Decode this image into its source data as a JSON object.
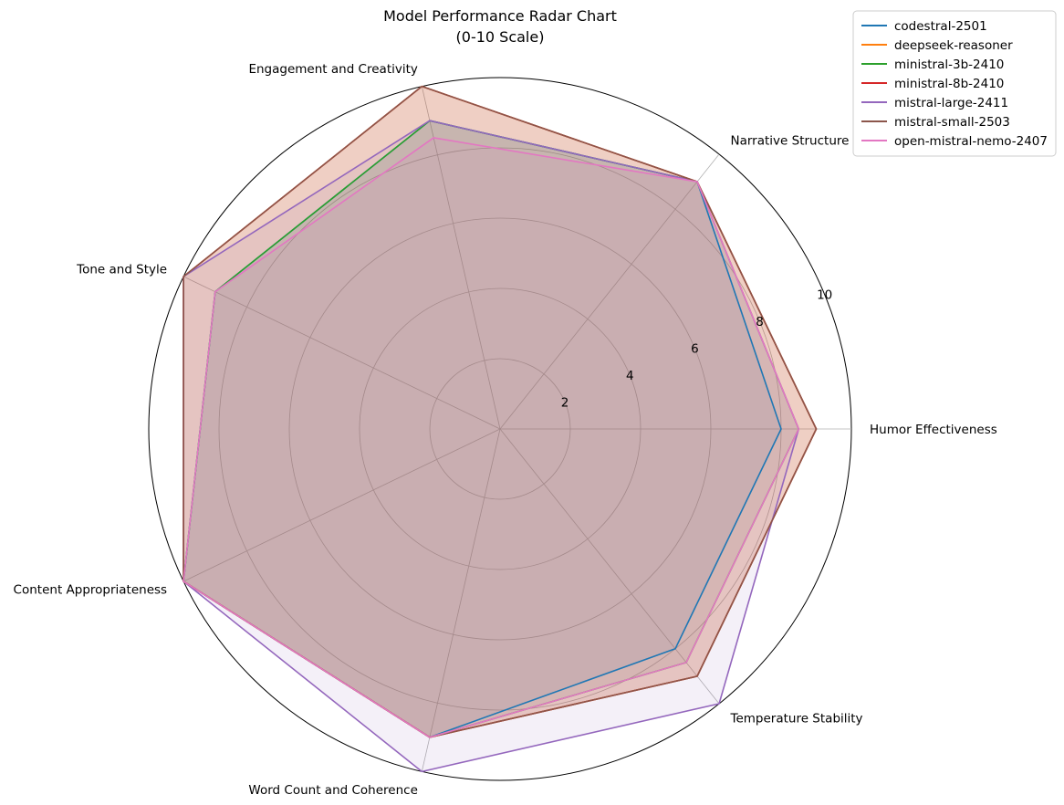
{
  "chart_data": {
    "type": "radar",
    "title": [
      "Model Performance Radar Chart",
      "(0-10 Scale)"
    ],
    "axes": [
      "Humor Effectiveness",
      "Narrative Structure",
      "Engagement and Creativity",
      "Tone and Style",
      "Content Appropriateness",
      "Word Count and Coherence",
      "Temperature Stability"
    ],
    "rlim": [
      0,
      10
    ],
    "r_ticks": [
      2,
      4,
      6,
      8,
      10
    ],
    "grid": true,
    "legend_position": "top-right",
    "series": [
      {
        "name": "codestral-2501",
        "color": "#1f77b4",
        "values": [
          8,
          9,
          9,
          9,
          10,
          9,
          8
        ]
      },
      {
        "name": "deepseek-reasoner",
        "color": "#ff7f0e",
        "values": [
          9,
          9,
          10,
          10,
          10,
          9,
          9
        ]
      },
      {
        "name": "ministral-3b-2410",
        "color": "#2ca02c",
        "values": [
          8.5,
          9,
          9,
          9,
          10,
          9,
          8.5
        ]
      },
      {
        "name": "ministral-8b-2410",
        "color": "#d62728",
        "values": [
          9,
          9,
          10,
          10,
          10,
          9,
          9
        ]
      },
      {
        "name": "mistral-large-2411",
        "color": "#9467bd",
        "values": [
          8.5,
          9,
          9,
          10,
          10,
          10,
          10
        ]
      },
      {
        "name": "mistral-small-2503",
        "color": "#8c564b",
        "values": [
          9,
          9,
          10,
          10,
          10,
          9,
          9
        ]
      },
      {
        "name": "open-mistral-nemo-2407",
        "color": "#e377c2",
        "values": [
          8.5,
          9,
          8.5,
          9,
          10,
          9,
          8.5
        ]
      }
    ]
  }
}
